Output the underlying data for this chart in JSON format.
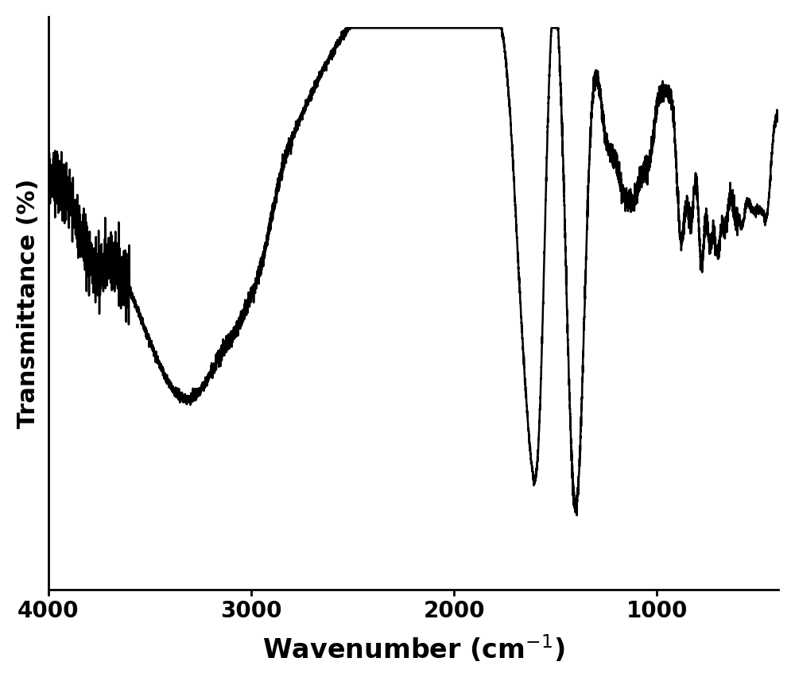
{
  "title": "",
  "xlabel": "Wavenumber (cm$^{-1}$)",
  "ylabel": "Transmittance (%)",
  "xlim": [
    4000,
    400
  ],
  "ylim": [
    0,
    100
  ],
  "xticks": [
    4000,
    3000,
    2000,
    1000
  ],
  "line_color": "#000000",
  "line_width": 1.8,
  "background_color": "#ffffff",
  "figsize": [
    10.0,
    8.57
  ],
  "dpi": 100
}
